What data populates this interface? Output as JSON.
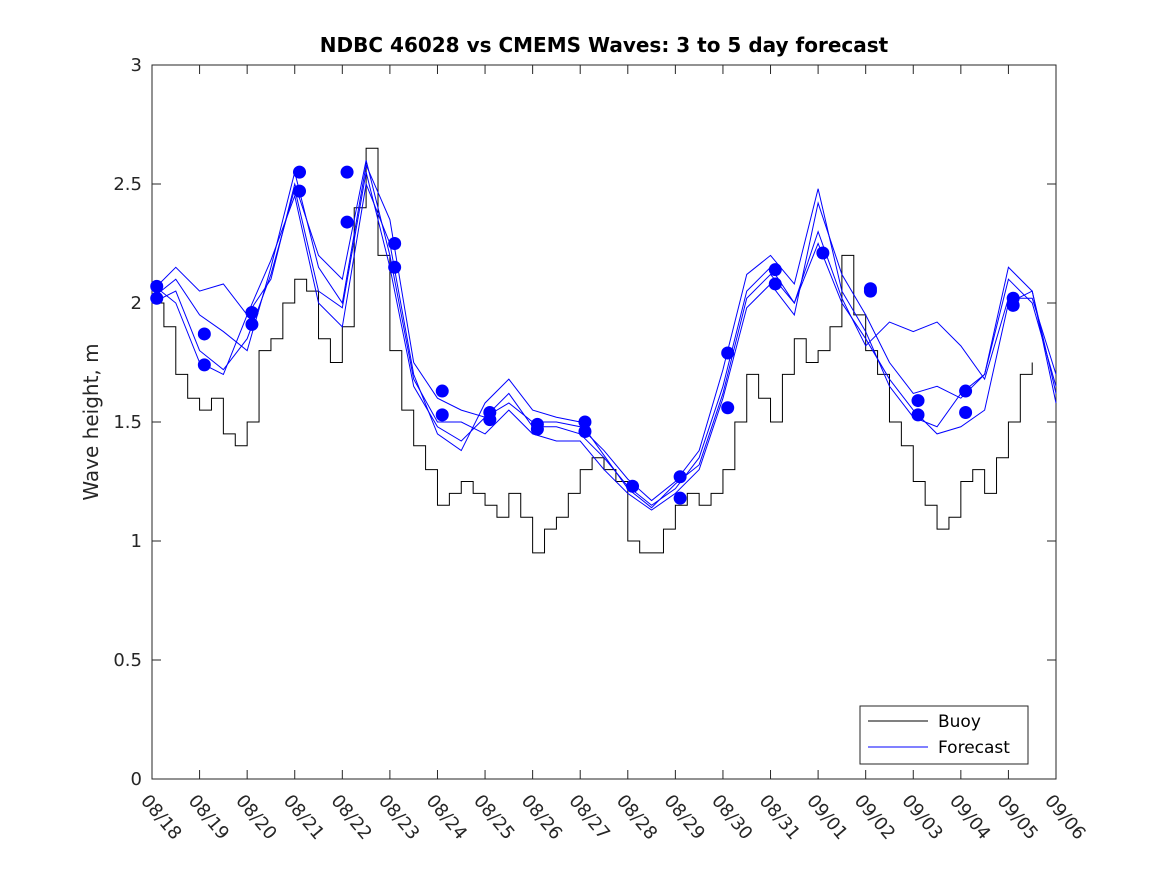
{
  "chart_data": {
    "type": "line",
    "title": "NDBC 46028 vs CMEMS Waves: 3 to 5 day forecast",
    "xlabel": "",
    "ylabel": "Wave height, m",
    "xlim": [
      0,
      19
    ],
    "ylim": [
      0,
      3
    ],
    "yticks": [
      0,
      0.5,
      1,
      1.5,
      2,
      2.5,
      3
    ],
    "ytick_labels": [
      "0",
      "0.5",
      "1",
      "1.5",
      "2",
      "2.5",
      "3"
    ],
    "xticks": [
      0,
      1,
      2,
      3,
      4,
      5,
      6,
      7,
      8,
      9,
      10,
      11,
      12,
      13,
      14,
      15,
      16,
      17,
      18,
      19
    ],
    "xtick_labels": [
      "08/18",
      "08/19",
      "08/20",
      "08/21",
      "08/22",
      "08/23",
      "08/24",
      "08/25",
      "08/26",
      "08/27",
      "08/28",
      "08/29",
      "08/30",
      "08/31",
      "09/01",
      "09/02",
      "09/03",
      "09/04",
      "09/05",
      "09/06"
    ],
    "legend": {
      "position": "bottom-right",
      "entries": [
        "Buoy",
        "Forecast"
      ]
    },
    "colors": {
      "buoy": "#000000",
      "forecast": "#0000ff",
      "axes": "#262626"
    },
    "buoy": {
      "name": "Buoy",
      "x": [
        0,
        0.25,
        0.5,
        0.75,
        1,
        1.25,
        1.5,
        1.75,
        2,
        2.25,
        2.5,
        2.75,
        3,
        3.25,
        3.5,
        3.75,
        4,
        4.25,
        4.5,
        4.75,
        5,
        5.25,
        5.5,
        5.75,
        6,
        6.25,
        6.5,
        6.75,
        7,
        7.25,
        7.5,
        7.75,
        8,
        8.25,
        8.5,
        8.75,
        9,
        9.25,
        9.5,
        9.75,
        10,
        10.25,
        10.5,
        10.75,
        11,
        11.25,
        11.5,
        11.75,
        12,
        12.25,
        12.5,
        12.75,
        13,
        13.25,
        13.5,
        13.75,
        14,
        14.25,
        14.5,
        14.75,
        15,
        15.25,
        15.5,
        15.75,
        16,
        16.25,
        16.5,
        16.75,
        17,
        17.25,
        17.5,
        17.75,
        18,
        18.25,
        18.5
      ],
      "values": [
        2.0,
        1.9,
        1.7,
        1.6,
        1.55,
        1.6,
        1.45,
        1.4,
        1.5,
        1.8,
        1.85,
        2.0,
        2.1,
        2.05,
        1.85,
        1.75,
        1.9,
        2.4,
        2.65,
        2.2,
        1.8,
        1.55,
        1.4,
        1.3,
        1.15,
        1.2,
        1.25,
        1.2,
        1.15,
        1.1,
        1.2,
        1.1,
        0.95,
        1.05,
        1.1,
        1.2,
        1.3,
        1.35,
        1.3,
        1.25,
        1.0,
        0.95,
        0.95,
        1.05,
        1.15,
        1.2,
        1.15,
        1.2,
        1.3,
        1.5,
        1.7,
        1.6,
        1.5,
        1.7,
        1.85,
        1.75,
        1.8,
        1.9,
        2.2,
        1.95,
        1.8,
        1.7,
        1.5,
        1.4,
        1.25,
        1.15,
        1.05,
        1.1,
        1.25,
        1.3,
        1.2,
        1.35,
        1.5,
        1.7,
        1.75
      ]
    },
    "forecast": {
      "name": "Forecast",
      "series": [
        {
          "x": [
            0,
            0.5,
            1,
            1.5,
            2,
            2.5,
            3,
            3.5,
            4,
            4.5,
            5,
            5.5,
            6,
            6.5,
            7,
            7.5,
            8,
            8.5,
            9,
            9.5,
            10,
            10.5,
            11,
            11.5,
            12,
            12.5,
            13,
            13.5,
            14,
            14.5,
            15,
            15.5,
            16,
            16.5,
            17,
            17.5,
            18,
            18.5,
            19
          ],
          "values": [
            2.02,
            2.1,
            1.95,
            1.88,
            1.8,
            2.15,
            2.55,
            2.15,
            2.0,
            2.58,
            2.35,
            1.75,
            1.6,
            1.55,
            1.52,
            1.62,
            1.48,
            1.48,
            1.45,
            1.35,
            1.23,
            1.15,
            1.22,
            1.35,
            1.65,
            2.05,
            2.15,
            2.0,
            2.25,
            2.0,
            1.85,
            1.68,
            1.55,
            1.45,
            1.48,
            1.55,
            2.0,
            2.05,
            1.62
          ]
        },
        {
          "x": [
            0,
            0.5,
            1,
            1.5,
            2,
            2.5,
            3,
            3.5,
            4,
            4.5,
            5,
            5.5,
            6,
            6.5,
            7,
            7.5,
            8,
            8.5,
            9,
            9.5,
            10,
            10.5,
            11,
            11.5,
            12,
            12.5,
            13,
            13.5,
            14,
            14.5,
            15,
            15.5,
            16,
            16.5,
            17,
            17.5,
            18,
            18.5,
            19
          ],
          "values": [
            2.05,
            2.15,
            2.05,
            2.08,
            1.95,
            2.1,
            2.5,
            2.2,
            2.1,
            2.6,
            2.2,
            1.68,
            1.5,
            1.5,
            1.45,
            1.55,
            1.45,
            1.42,
            1.42,
            1.3,
            1.2,
            1.13,
            1.2,
            1.3,
            1.6,
            1.98,
            2.08,
            1.95,
            2.42,
            2.12,
            1.95,
            1.75,
            1.62,
            1.65,
            1.6,
            1.7,
            2.1,
            2.0,
            1.65
          ]
        },
        {
          "x": [
            0,
            0.5,
            1,
            1.5,
            2,
            2.5,
            3,
            3.5,
            4,
            4.5,
            5,
            5.5,
            6,
            6.5,
            7,
            7.5,
            8,
            8.5,
            9,
            9.5,
            10,
            10.5,
            11,
            11.5,
            12,
            12.5,
            13,
            13.5,
            14,
            14.5,
            15,
            15.5,
            16,
            16.5,
            17,
            17.5,
            18,
            18.5,
            19
          ],
          "values": [
            2.0,
            2.05,
            1.8,
            1.72,
            1.85,
            2.12,
            2.48,
            2.05,
            1.98,
            2.55,
            2.15,
            1.65,
            1.48,
            1.42,
            1.52,
            1.58,
            1.5,
            1.5,
            1.48,
            1.38,
            1.26,
            1.17,
            1.25,
            1.38,
            1.72,
            2.12,
            2.2,
            2.08,
            2.48,
            2.05,
            1.88,
            1.65,
            1.52,
            1.48,
            1.62,
            1.7,
            2.15,
            2.05,
            1.58
          ]
        },
        {
          "x": [
            0,
            0.5,
            1,
            1.5,
            2,
            2.5,
            3,
            3.5,
            4,
            4.5,
            5,
            5.5,
            6,
            6.5,
            7,
            7.5,
            8,
            8.5,
            9,
            9.5,
            10,
            10.5,
            11,
            11.5,
            12,
            12.5,
            13,
            13.5,
            14,
            14.5,
            15,
            15.5,
            16,
            16.5,
            17,
            17.5,
            18,
            18.5,
            19
          ],
          "values": [
            2.08,
            2.0,
            1.75,
            1.7,
            1.95,
            2.18,
            2.45,
            2.0,
            1.9,
            2.5,
            2.25,
            1.7,
            1.45,
            1.38,
            1.58,
            1.68,
            1.55,
            1.52,
            1.5,
            1.36,
            1.22,
            1.14,
            1.24,
            1.32,
            1.62,
            2.02,
            2.12,
            2.0,
            2.3,
            2.02,
            1.82,
            1.92,
            1.88,
            1.92,
            1.82,
            1.68,
            2.02,
            2.02,
            1.7
          ]
        }
      ]
    },
    "forecast_markers": {
      "x": [
        0.1,
        0.1,
        1.1,
        1.1,
        2.1,
        2.1,
        3.1,
        3.1,
        4.1,
        4.1,
        5.1,
        5.1,
        6.1,
        6.1,
        7.1,
        7.1,
        8.1,
        8.1,
        9.1,
        9.1,
        10.1,
        11.1,
        11.1,
        12.1,
        12.1,
        13.1,
        13.1,
        14.1,
        15.1,
        15.1,
        16.1,
        16.1,
        17.1,
        17.1,
        18.1,
        18.1
      ],
      "values": [
        2.07,
        2.02,
        1.87,
        1.74,
        1.96,
        1.91,
        2.55,
        2.47,
        2.55,
        2.34,
        2.25,
        2.15,
        1.63,
        1.53,
        1.54,
        1.51,
        1.49,
        1.47,
        1.5,
        1.46,
        1.23,
        1.27,
        1.18,
        1.79,
        1.56,
        2.14,
        2.08,
        2.21,
        2.06,
        2.05,
        1.59,
        1.53,
        1.63,
        1.54,
        2.02,
        1.99
      ]
    }
  }
}
